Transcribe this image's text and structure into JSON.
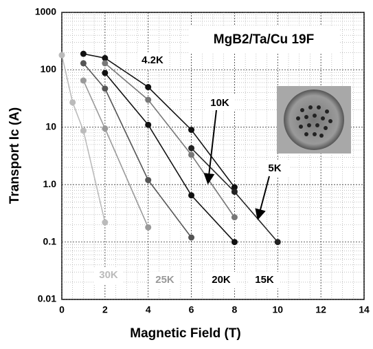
{
  "chart_data": {
    "type": "scatter-line",
    "title": "MgB2/Ta/Cu 19F",
    "x_label": "Magnetic Field (T)",
    "y_label": "Transport Ic (A)",
    "xlim": [
      0,
      14
    ],
    "xticks": [
      0,
      2,
      4,
      6,
      8,
      10,
      12,
      14
    ],
    "ylim": [
      0.01,
      1000
    ],
    "log_y": true,
    "yticks": [
      0.01,
      0.1,
      {
        "value": 1,
        "label": "1.0"
      },
      10,
      100,
      1000
    ],
    "grid": true,
    "series": [
      {
        "name": "4.2K",
        "color": "#111111",
        "x": [
          1,
          2,
          4,
          6,
          8
        ],
        "values": [
          190,
          160,
          50,
          9,
          0.9
        ]
      },
      {
        "name": "5K",
        "color": "#222222",
        "x": [
          6,
          8,
          10
        ],
        "values": [
          4.3,
          0.75,
          0.1
        ]
      },
      {
        "name": "10K",
        "color": "#777777",
        "x": [
          2,
          4,
          6,
          8
        ],
        "values": [
          130,
          30,
          3.3,
          0.27
        ]
      },
      {
        "name": "15K",
        "color": "#111111",
        "x": [
          2,
          4,
          6,
          8
        ],
        "values": [
          88,
          11,
          0.65,
          0.1
        ]
      },
      {
        "name": "20K",
        "color": "#555555",
        "x": [
          1,
          2,
          4,
          6
        ],
        "values": [
          130,
          47,
          1.2,
          0.12
        ]
      },
      {
        "name": "25K",
        "color": "#999999",
        "x": [
          1,
          2,
          4
        ],
        "values": [
          65,
          9.5,
          0.18
        ]
      },
      {
        "name": "30K",
        "color": "#bbbbbb",
        "x": [
          0,
          0.5,
          1,
          2
        ],
        "values": [
          180,
          27,
          8.7,
          0.22
        ]
      }
    ]
  }
}
